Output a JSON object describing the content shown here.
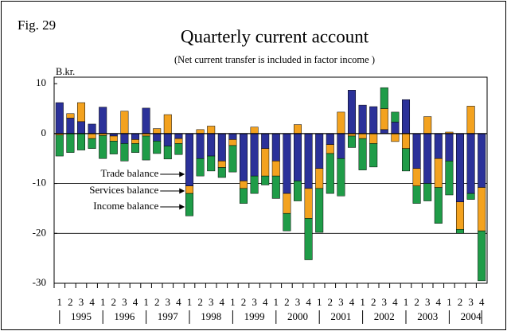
{
  "chart_data": {
    "type": "bar",
    "stacked": true,
    "figure_label": "Fig. 29",
    "title": "Quarterly current account",
    "subtitle": "(Net current transfer is included in factor income )",
    "y_unit": "B.kr.",
    "categories": [
      "1",
      "2",
      "3",
      "4",
      "1",
      "2",
      "3",
      "4",
      "1",
      "2",
      "3",
      "4",
      "1",
      "2",
      "3",
      "4",
      "1",
      "2",
      "3",
      "4",
      "1",
      "2",
      "3",
      "4",
      "1",
      "2",
      "3",
      "4",
      "1",
      "2",
      "3",
      "4",
      "1",
      "2",
      "3",
      "4",
      "1",
      "2",
      "3",
      "4"
    ],
    "years": [
      "1995",
      "1996",
      "1997",
      "1998",
      "1999",
      "2000",
      "2001",
      "2002",
      "2003",
      "2004"
    ],
    "series": [
      {
        "name": "Trade balance",
        "color": "#2b3199",
        "values": [
          6.2,
          3.1,
          2.4,
          1.9,
          5.3,
          -0.5,
          -2,
          -1.2,
          5.1,
          -1.5,
          -2.5,
          -1,
          -10.5,
          -5,
          -4.5,
          -5.5,
          -1.2,
          -9.5,
          -8.5,
          -3,
          -5.5,
          -12,
          -9.5,
          -11,
          -7,
          -2.2,
          -5,
          8.7,
          5.7,
          5.4,
          0.8,
          2.3,
          6.8,
          -7,
          -10,
          -5,
          -5.5,
          -13.7,
          -12,
          -10.8
        ]
      },
      {
        "name": "Services balance",
        "color": "#f3a21f",
        "values": [
          -0.3,
          0.9,
          3.8,
          -1,
          -0.4,
          -1,
          4.5,
          -0.8,
          -0.5,
          1,
          3.8,
          -1,
          -1.5,
          0.8,
          1.5,
          -1.3,
          -1.2,
          -1.5,
          1.3,
          -5.5,
          -3,
          -4,
          1.8,
          -6,
          -4,
          -1.8,
          4.3,
          -0.5,
          -1,
          -2,
          4.2,
          -1.6,
          -3,
          -3.5,
          3.4,
          -5.8,
          0.3,
          -5.5,
          5.5,
          -8.7
        ]
      },
      {
        "name": "Income balance",
        "color": "#1f9c48",
        "values": [
          -4.2,
          -3.8,
          -3.3,
          -2,
          -4.6,
          -2.6,
          -3.5,
          -1.8,
          -4.8,
          -2.5,
          -2.6,
          -2.2,
          -4.5,
          -3.5,
          -3,
          -2,
          -5.3,
          -3,
          -3.5,
          -1.8,
          -4.5,
          -3.5,
          -4,
          -8.3,
          -8.8,
          -8,
          -7.5,
          -2.3,
          -6.3,
          -4.7,
          4.2,
          2,
          -4.5,
          -3.5,
          -3.5,
          -7.2,
          -6.8,
          -0.8,
          -1.2,
          -10
        ]
      }
    ],
    "annotation_bar": 12,
    "ylim": [
      -30,
      11.3
    ],
    "yticks": [
      -30,
      -20,
      -10,
      0,
      10
    ],
    "grid_lines": [
      -20,
      -10
    ]
  }
}
